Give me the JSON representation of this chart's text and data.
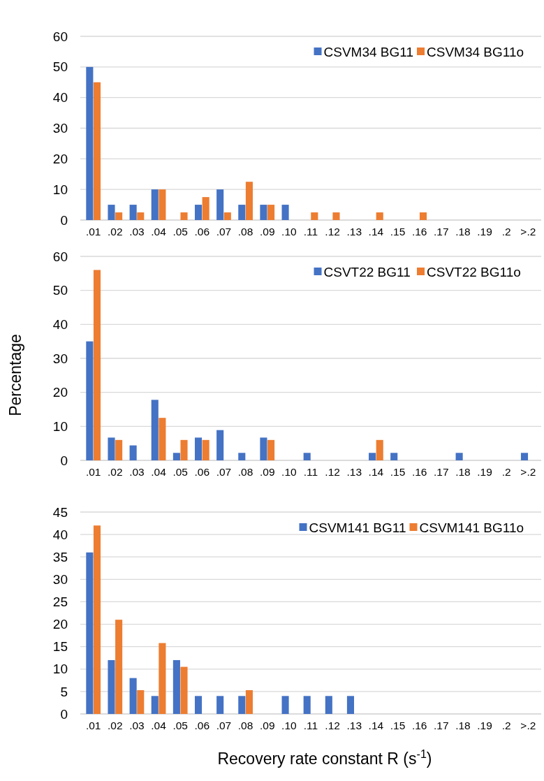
{
  "chart_data": [
    {
      "type": "bar",
      "categories": [
        ".01",
        ".02",
        ".03",
        ".04",
        ".05",
        ".06",
        ".07",
        ".08",
        ".09",
        ".10",
        ".11",
        ".12",
        ".13",
        ".14",
        ".15",
        ".16",
        ".17",
        ".18",
        ".19",
        ".2",
        ">.2"
      ],
      "ylim": [
        0,
        60
      ],
      "yticks": [
        0,
        10,
        20,
        30,
        40,
        50,
        60
      ],
      "grid": "y",
      "legend": "top right",
      "series": [
        {
          "name": "CSVM34 BG11",
          "color": "#4472c4",
          "values": [
            50,
            5,
            5,
            10,
            0,
            5,
            10,
            5,
            5,
            5,
            0,
            0,
            0,
            0,
            0,
            0,
            0,
            0,
            0,
            0,
            0
          ]
        },
        {
          "name": "CSVM34 BG11o",
          "color": "#ed7d31",
          "values": [
            45,
            2.5,
            2.5,
            10,
            2.5,
            7.5,
            2.5,
            12.5,
            5,
            0,
            2.5,
            2.5,
            0,
            2.5,
            0,
            2.5,
            0,
            0,
            0,
            0,
            0
          ]
        }
      ]
    },
    {
      "type": "bar",
      "ylabel": "Percentage",
      "categories": [
        ".01",
        ".02",
        ".03",
        ".04",
        ".05",
        ".06",
        ".07",
        ".08",
        ".09",
        ".10",
        ".11",
        ".12",
        ".13",
        ".14",
        ".15",
        ".16",
        ".17",
        ".18",
        ".19",
        ".2",
        ">.2"
      ],
      "ylim": [
        0,
        60
      ],
      "yticks": [
        0,
        10,
        20,
        30,
        40,
        50,
        60
      ],
      "grid": "y",
      "legend": "top right",
      "series": [
        {
          "name": "CSVT22 BG11",
          "color": "#4472c4",
          "values": [
            35,
            6.7,
            4.4,
            17.8,
            2.2,
            6.7,
            8.9,
            2.2,
            6.7,
            0,
            2.2,
            0,
            0,
            2.2,
            2.2,
            0,
            0,
            2.2,
            0,
            0,
            2.2
          ]
        },
        {
          "name": "CSVT22 BG11o",
          "color": "#ed7d31",
          "values": [
            56,
            6,
            0,
            12.5,
            6,
            6,
            0,
            0,
            6,
            0,
            0,
            0,
            0,
            6,
            0,
            0,
            0,
            0,
            0,
            0,
            0
          ]
        }
      ]
    },
    {
      "type": "bar",
      "xlabel": "Recovery rate constant R (s$^{-1}$)",
      "categories": [
        ".01",
        ".02",
        ".03",
        ".04",
        ".05",
        ".06",
        ".07",
        ".08",
        ".09",
        ".10",
        ".11",
        ".12",
        ".13",
        ".14",
        ".15",
        ".16",
        ".17",
        ".18",
        ".19",
        ".2",
        ">.2"
      ],
      "ylim": [
        0,
        45
      ],
      "yticks": [
        0,
        5,
        10,
        15,
        20,
        25,
        30,
        35,
        40,
        45
      ],
      "grid": "y",
      "legend": "top right",
      "series": [
        {
          "name": "CSVM141 BG11",
          "color": "#4472c4",
          "values": [
            36,
            12,
            8,
            4,
            12,
            4,
            4,
            4,
            0,
            4,
            4,
            4,
            4,
            0,
            0,
            0,
            0,
            0,
            0,
            0,
            0
          ]
        },
        {
          "name": "CSVM141 BG11o",
          "color": "#ed7d31",
          "values": [
            42,
            21,
            5.3,
            15.8,
            10.5,
            0,
            0,
            5.3,
            0,
            0,
            0,
            0,
            0,
            0,
            0,
            0,
            0,
            0,
            0,
            0,
            0
          ]
        }
      ]
    }
  ]
}
